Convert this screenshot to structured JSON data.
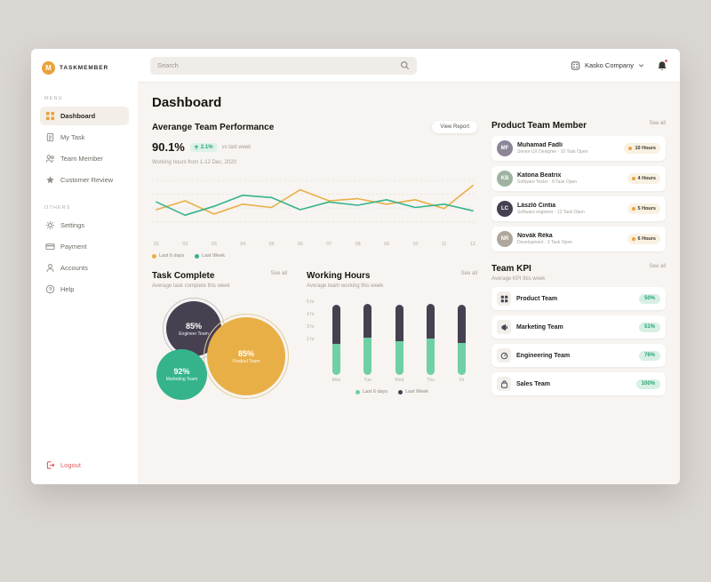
{
  "app": {
    "logo_letter": "M",
    "brand": "TASKMEMBER"
  },
  "topbar": {
    "search_placeholder": "Search",
    "company": "Kasko Company"
  },
  "sidebar": {
    "menu_label": "MENU",
    "others_label": "OTHERS",
    "menu": [
      {
        "label": "Dashboard"
      },
      {
        "label": "My Task"
      },
      {
        "label": "Team Member"
      },
      {
        "label": "Customer Review"
      }
    ],
    "others": [
      {
        "label": "Settings"
      },
      {
        "label": "Payment"
      },
      {
        "label": "Accounts"
      },
      {
        "label": "Help"
      }
    ],
    "logout_label": "Logout"
  },
  "page": {
    "title": "Dashboard"
  },
  "performance": {
    "title": "Averange Team Performance",
    "view_report_label": "View Report",
    "value": "90.1%",
    "delta": "2.1%",
    "delta_note": "vs last week",
    "subtitle": "Working hours from 1-12 Dec, 2020"
  },
  "team_members": {
    "title": "Product Team Member",
    "see_all": "See all",
    "members": [
      {
        "name": "Muhamad Fadli",
        "role": "Senior UX Designer · 10 Task Open",
        "hours": "10 Hours"
      },
      {
        "name": "Katona Beatrix",
        "role": "Software Tester · 8 Task Open",
        "hours": "4 Hours"
      },
      {
        "name": "László Cintia",
        "role": "Software engineer · 12 Task Open",
        "hours": "5 Hours"
      },
      {
        "name": "Novák Réka",
        "role": "Development · 3 Task Open",
        "hours": "6 Hours"
      }
    ]
  },
  "task_complete": {
    "title": "Task Complete",
    "subtitle": "Average task complete this week",
    "see_all": "See all"
  },
  "working_hours": {
    "title": "Working Hours",
    "subtitle": "Average team working this week",
    "see_all": "See all"
  },
  "team_kpi": {
    "title": "Team KPI",
    "subtitle": "Average KPI this week",
    "see_all": "See all",
    "teams": [
      {
        "name": "Product Team",
        "kpi": "50%"
      },
      {
        "name": "Marketing Team",
        "kpi": "51%"
      },
      {
        "name": "Engineering Team",
        "kpi": "76%"
      },
      {
        "name": "Sales Team",
        "kpi": "100%"
      }
    ]
  },
  "colors": {
    "accent_orange": "#E9AF47",
    "accent_green": "#35B48C",
    "accent_dark": "#474051",
    "logout_red": "#E05C5C"
  },
  "chart_data": [
    {
      "id": "team-performance",
      "type": "line",
      "title": "Averange Team Performance",
      "x": [
        "01",
        "02",
        "03",
        "04",
        "05",
        "06",
        "07",
        "08",
        "09",
        "10",
        "11",
        "12"
      ],
      "ylim": [
        0,
        100
      ],
      "grid": true,
      "legend_position": "bottom-left",
      "series": [
        {
          "name": "Last 6 days",
          "color": "#E9AF47",
          "values": [
            42,
            58,
            34,
            52,
            46,
            78,
            58,
            62,
            52,
            60,
            44,
            86
          ]
        },
        {
          "name": "Last Week",
          "color": "#35B48C",
          "values": [
            56,
            32,
            48,
            68,
            64,
            42,
            56,
            50,
            60,
            46,
            52,
            40
          ]
        }
      ]
    },
    {
      "id": "task-complete",
      "type": "bubble",
      "title": "Task Complete",
      "points": [
        {
          "label": "Engineer Team",
          "value": "85%",
          "color": "#474051"
        },
        {
          "label": "Marketing Team",
          "value": "92%",
          "color": "#35B48C"
        },
        {
          "label": "Product Team",
          "value": "85%",
          "color": "#E9AF47"
        }
      ]
    },
    {
      "id": "working-hours",
      "type": "bar",
      "title": "Working Hours",
      "categories": [
        "Mon",
        "Tue",
        "Wed",
        "Thu",
        "Fri"
      ],
      "yticks": [
        "5 hr",
        "4 hr",
        "3 hr",
        "2 hr"
      ],
      "ymax": 5,
      "series": [
        {
          "name": "Last 6 days",
          "color": "#6FD0A5",
          "values": [
            2.1,
            2.6,
            2.3,
            2.5,
            2.2
          ]
        },
        {
          "name": "Last Week",
          "color": "#474051",
          "values": [
            2.7,
            2.3,
            2.5,
            2.4,
            2.6
          ]
        }
      ]
    }
  ]
}
